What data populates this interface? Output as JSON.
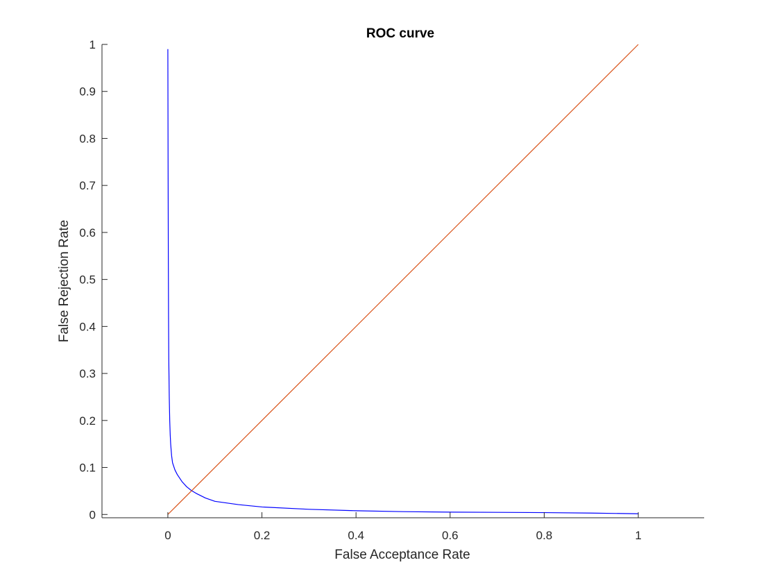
{
  "chart_data": {
    "type": "line",
    "title": "ROC curve",
    "xlabel": "False Acceptance Rate",
    "ylabel": "False Rejection Rate",
    "xlim": [
      -0.14,
      1.14
    ],
    "ylim": [
      -0.007,
      1.0
    ],
    "x_ticks": [
      0,
      0.2,
      0.4,
      0.6,
      0.8,
      1
    ],
    "x_tick_labels": [
      "0",
      "0.2",
      "0.4",
      "0.6",
      "0.8",
      "1"
    ],
    "y_ticks": [
      0,
      0.1,
      0.2,
      0.3,
      0.4,
      0.5,
      0.6,
      0.7,
      0.8,
      0.9,
      1
    ],
    "y_tick_labels": [
      "0",
      "0.1",
      "0.2",
      "0.3",
      "0.4",
      "0.5",
      "0.6",
      "0.7",
      "0.8",
      "0.9",
      "1"
    ],
    "grid": false,
    "legend": "none",
    "series": [
      {
        "color": "#0000ff",
        "x": [
          0.0,
          0.0005,
          0.001,
          0.0015,
          0.002,
          0.003,
          0.004,
          0.005,
          0.006,
          0.008,
          0.01,
          0.015,
          0.02,
          0.03,
          0.04,
          0.05,
          0.06,
          0.08,
          0.1,
          0.15,
          0.2,
          0.3,
          0.4,
          0.5,
          0.6,
          0.7,
          0.8,
          0.9,
          1.0
        ],
        "y": [
          0.99,
          0.75,
          0.55,
          0.42,
          0.33,
          0.25,
          0.2,
          0.17,
          0.15,
          0.125,
          0.11,
          0.095,
          0.085,
          0.07,
          0.059,
          0.051,
          0.045,
          0.035,
          0.028,
          0.021,
          0.016,
          0.011,
          0.008,
          0.006,
          0.005,
          0.0045,
          0.004,
          0.003,
          0.0015
        ]
      },
      {
        "color": "#d95319",
        "x": [
          0,
          1
        ],
        "y": [
          0,
          1
        ]
      }
    ]
  }
}
